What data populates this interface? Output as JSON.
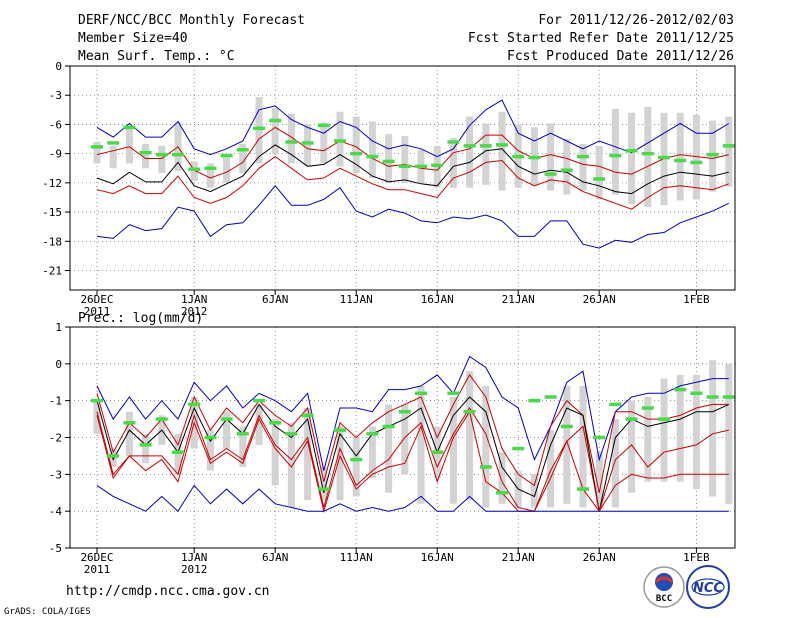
{
  "header": {
    "title": "DERF/NCC/BCC Monthly Forecast",
    "member_size": "Member Size=40",
    "period": "For 2011/12/26-2012/02/03",
    "start_date": "Fcst Started Refer Date 2011/12/25",
    "produced_date": "Fcst Produced Date 2011/12/26"
  },
  "footer": {
    "url": "http://cmdp.ncc.cma.gov.cn",
    "credit": "GrADS: COLA/IGES",
    "logo_bcc": "BCC",
    "logo_ncc": "NCC"
  },
  "colors": {
    "envelope": "#0000cc",
    "spread": "#cc0000",
    "mean": "#000000",
    "box": "#d3d3d3",
    "median": "#44dd44",
    "grid": "#777777"
  },
  "chart_data": [
    {
      "type": "line",
      "title": "Mean Surf. Temp.: °C",
      "ylim": [
        -23,
        0
      ],
      "yticks": [
        0,
        -3,
        -6,
        -9,
        -12,
        -15,
        -18,
        -21
      ],
      "ytick_labels": [
        "0",
        "-3",
        "-6",
        "-9",
        "-12",
        "-15",
        "-18",
        "-21"
      ],
      "x_tick_days": [
        0,
        6,
        11,
        16,
        21,
        26,
        31,
        37
      ],
      "x_tick_labels": [
        "26DEC",
        "1JAN",
        "6JAN",
        "11JAN",
        "16JAN",
        "21JAN",
        "26JAN",
        "1FEB"
      ],
      "x_year_labels": [
        "2011",
        "2012"
      ],
      "x_year_days": [
        0,
        6
      ],
      "days": [
        0,
        1,
        2,
        3,
        4,
        5,
        6,
        7,
        8,
        9,
        10,
        11,
        12,
        13,
        14,
        15,
        16,
        17,
        18,
        19,
        20,
        21,
        22,
        23,
        24,
        25,
        26,
        27,
        28,
        29,
        30,
        31,
        32,
        33,
        34,
        35,
        36,
        37,
        38,
        39
      ],
      "series": [
        {
          "name": "max",
          "color": "blue",
          "values": [
            -6.3,
            -7.3,
            -5.9,
            -7.3,
            -7.3,
            -5.7,
            -8.5,
            -9.1,
            -8.5,
            -7.7,
            -4.5,
            -4.1,
            -5.5,
            -6.3,
            -6.9,
            -5.7,
            -6.3,
            -7.7,
            -8.5,
            -8.1,
            -8.5,
            -9.3,
            -8.5,
            -6.1,
            -4.5,
            -3.5,
            -6.9,
            -7.7,
            -6.9,
            -7.7,
            -8.5,
            -7.7,
            -8.3,
            -8.9,
            -7.9,
            -6.9,
            -5.9,
            -6.9,
            -6.9,
            -5.9
          ]
        },
        {
          "name": "upper",
          "color": "red",
          "values": [
            -9.1,
            -8.7,
            -8.3,
            -9.5,
            -9.5,
            -8.3,
            -10.7,
            -11.5,
            -10.9,
            -9.9,
            -7.5,
            -6.3,
            -7.3,
            -8.5,
            -8.7,
            -7.7,
            -8.3,
            -9.5,
            -10.3,
            -10.1,
            -10.5,
            -10.7,
            -8.9,
            -8.5,
            -7.1,
            -7.1,
            -8.7,
            -9.5,
            -9.1,
            -9.5,
            -10.1,
            -10.3,
            -10.9,
            -11.1,
            -10.3,
            -9.5,
            -9.1,
            -9.3,
            -9.5,
            -9.1
          ]
        },
        {
          "name": "mean",
          "color": "black",
          "values": [
            -11.5,
            -12.1,
            -10.9,
            -11.9,
            -11.9,
            -9.9,
            -12.3,
            -12.9,
            -12.1,
            -11.3,
            -9.3,
            -8.1,
            -9.1,
            -10.3,
            -10.1,
            -9.1,
            -10.1,
            -11.3,
            -11.9,
            -11.7,
            -12.1,
            -12.3,
            -10.3,
            -9.9,
            -8.7,
            -8.5,
            -10.3,
            -11.1,
            -10.7,
            -10.9,
            -11.9,
            -12.3,
            -12.9,
            -13.1,
            -12.1,
            -11.3,
            -10.9,
            -11.1,
            -11.3,
            -10.9
          ]
        },
        {
          "name": "lower",
          "color": "red",
          "values": [
            -12.7,
            -13.1,
            -12.3,
            -13.1,
            -13.1,
            -11.3,
            -13.5,
            -14.1,
            -13.5,
            -12.3,
            -10.5,
            -9.3,
            -10.5,
            -11.7,
            -11.5,
            -10.5,
            -11.3,
            -12.1,
            -12.7,
            -12.7,
            -13.1,
            -13.5,
            -11.5,
            -10.9,
            -9.9,
            -9.7,
            -11.5,
            -12.3,
            -11.7,
            -11.9,
            -12.9,
            -13.5,
            -14.1,
            -14.7,
            -13.5,
            -12.5,
            -12.3,
            -12.5,
            -12.7,
            -12.1
          ]
        },
        {
          "name": "min",
          "color": "blue",
          "values": [
            -17.5,
            -17.7,
            -16.3,
            -16.9,
            -16.7,
            -14.5,
            -14.9,
            -17.5,
            -16.3,
            -16.1,
            -14.3,
            -12.3,
            -14.3,
            -14.3,
            -13.7,
            -12.5,
            -14.9,
            -15.5,
            -14.7,
            -15.1,
            -15.9,
            -16.1,
            -15.5,
            -15.7,
            -15.3,
            -15.9,
            -17.5,
            -17.5,
            -15.9,
            -15.9,
            -18.3,
            -18.7,
            -17.9,
            -18.1,
            -17.3,
            -17.1,
            -16.1,
            -15.5,
            -14.9,
            -14.1
          ]
        },
        {
          "name": "box_top",
          "color": "gray",
          "values": [
            -7.8,
            -8.2,
            -6.2,
            -8.0,
            -8.2,
            -5.8,
            -9.8,
            -10.0,
            -9.4,
            -8.0,
            -3.2,
            -4.3,
            -4.9,
            -6.0,
            -5.8,
            -4.7,
            -5.2,
            -5.7,
            -7.0,
            -7.2,
            -8.6,
            -8.2,
            -7.4,
            -5.2,
            -5.9,
            -4.7,
            -6.0,
            -6.3,
            -5.9,
            -7.5,
            -8.0,
            -8.2,
            -4.4,
            -4.8,
            -4.2,
            -4.8,
            -4.8,
            -5.0,
            -5.6,
            -5.2
          ]
        },
        {
          "name": "box_bottom",
          "color": "gray",
          "values": [
            -10.0,
            -10.5,
            -10.0,
            -10.5,
            -11.0,
            -10.8,
            -11.8,
            -12.5,
            -12.0,
            -11.0,
            -10.0,
            -9.0,
            -10.0,
            -10.2,
            -10.0,
            -10.3,
            -11.0,
            -11.5,
            -12.0,
            -12.0,
            -12.0,
            -12.5,
            -12.5,
            -12.5,
            -12.2,
            -12.8,
            -12.5,
            -12.3,
            -12.8,
            -13.2,
            -12.8,
            -13.7,
            -13.2,
            -14.2,
            -14.5,
            -14.3,
            -13.8,
            -13.7,
            -12.9,
            -12.4
          ]
        },
        {
          "name": "median",
          "color": "green",
          "values": [
            -8.3,
            -7.9,
            -6.3,
            -8.9,
            -9.1,
            -9.1,
            -10.6,
            -10.5,
            -9.2,
            -8.6,
            -6.4,
            -5.6,
            -7.8,
            -7.9,
            -6.1,
            -7.7,
            -9.0,
            -9.3,
            -9.8,
            -10.3,
            -10.3,
            -10.2,
            -7.8,
            -8.2,
            -8.2,
            -8.1,
            -9.3,
            -9.4,
            -11.1,
            -10.7,
            -9.3,
            -11.6,
            -9.2,
            -8.7,
            -9.0,
            -9.4,
            -9.7,
            -9.9,
            -9.1,
            -8.2
          ]
        }
      ]
    },
    {
      "type": "line",
      "title": "Prec.: log(mm/d)",
      "ylim": [
        -5,
        1
      ],
      "yticks": [
        1,
        0,
        -1,
        -2,
        -3,
        -4,
        -5
      ],
      "ytick_labels": [
        "1",
        "0",
        "-1",
        "-2",
        "-3",
        "-4",
        "-5"
      ],
      "x_tick_days": [
        0,
        6,
        11,
        16,
        21,
        26,
        31,
        37
      ],
      "x_tick_labels": [
        "26DEC",
        "1JAN",
        "6JAN",
        "11JAN",
        "16JAN",
        "21JAN",
        "26JAN",
        "1FEB"
      ],
      "x_year_labels": [
        "2011",
        "2012"
      ],
      "x_year_days": [
        0,
        6
      ],
      "days": [
        0,
        1,
        2,
        3,
        4,
        5,
        6,
        7,
        8,
        9,
        10,
        11,
        12,
        13,
        14,
        15,
        16,
        17,
        18,
        19,
        20,
        21,
        22,
        23,
        24,
        25,
        26,
        27,
        28,
        29,
        30,
        31,
        32,
        33,
        34,
        35,
        36,
        37,
        38,
        39
      ],
      "series": [
        {
          "name": "max",
          "color": "blue",
          "values": [
            -0.6,
            -1.5,
            -0.9,
            -1.5,
            -1.0,
            -1.5,
            -0.5,
            -1.0,
            -0.6,
            -1.2,
            -0.8,
            -1.0,
            -1.3,
            -0.8,
            -2.9,
            -1.2,
            -1.2,
            -1.3,
            -0.7,
            -0.7,
            -0.6,
            -0.3,
            -0.8,
            0.2,
            -0.1,
            -0.9,
            -1.2,
            -2.6,
            -1.7,
            -0.5,
            -0.2,
            -2.6,
            -1.3,
            -0.9,
            -0.8,
            -0.8,
            -0.6,
            -0.5,
            -0.4,
            -0.4
          ]
        },
        {
          "name": "upper",
          "color": "red",
          "values": [
            -0.8,
            -2.4,
            -1.6,
            -2.0,
            -1.5,
            -2.2,
            -0.9,
            -1.8,
            -1.2,
            -1.6,
            -1.0,
            -1.4,
            -1.7,
            -1.2,
            -3.2,
            -1.6,
            -2.0,
            -1.6,
            -1.3,
            -1.1,
            -0.9,
            -2.0,
            -1.1,
            -0.3,
            -0.9,
            -2.3,
            -3.0,
            -3.3,
            -1.7,
            -1.0,
            -1.4,
            -3.5,
            -1.3,
            -1.3,
            -1.5,
            -1.5,
            -1.4,
            -1.2,
            -1.1,
            -1.1
          ]
        },
        {
          "name": "mean",
          "color": "black",
          "values": [
            -1.0,
            -2.6,
            -1.8,
            -2.2,
            -1.8,
            -2.4,
            -1.2,
            -2.1,
            -1.5,
            -1.9,
            -1.1,
            -1.7,
            -2.0,
            -1.5,
            -3.5,
            -1.9,
            -2.5,
            -1.9,
            -1.7,
            -1.5,
            -1.2,
            -2.4,
            -1.4,
            -0.9,
            -1.3,
            -2.8,
            -3.4,
            -3.6,
            -2.2,
            -1.2,
            -1.4,
            -4.0,
            -2.0,
            -1.5,
            -1.7,
            -1.6,
            -1.5,
            -1.3,
            -1.3,
            -1.1
          ]
        },
        {
          "name": "lower",
          "color": "red",
          "values": [
            -1.3,
            -3.0,
            -2.5,
            -2.5,
            -2.5,
            -3.0,
            -1.4,
            -2.6,
            -2.3,
            -2.6,
            -1.4,
            -2.2,
            -2.6,
            -2.0,
            -3.9,
            -2.3,
            -3.3,
            -2.9,
            -2.6,
            -2.0,
            -1.6,
            -2.8,
            -1.9,
            -1.2,
            -1.9,
            -3.2,
            -3.9,
            -4.0,
            -2.9,
            -2.1,
            -1.7,
            -4.0,
            -2.6,
            -2.2,
            -2.8,
            -2.4,
            -2.3,
            -2.2,
            -1.9,
            -1.8
          ]
        },
        {
          "name": "lowest",
          "color": "red",
          "values": [
            -1.4,
            -3.1,
            -2.5,
            -2.9,
            -2.6,
            -3.2,
            -1.6,
            -2.7,
            -2.4,
            -2.7,
            -1.5,
            -2.3,
            -2.8,
            -2.1,
            -4.0,
            -2.5,
            -3.4,
            -3.0,
            -2.8,
            -2.7,
            -1.7,
            -3.2,
            -2.0,
            -1.3,
            -3.2,
            -3.5,
            -4.0,
            -4.0,
            -3.1,
            -2.1,
            -3.4,
            -4.0,
            -3.3,
            -3.0,
            -3.1,
            -3.1,
            -3.0,
            -3.0,
            -3.0,
            -3.0
          ]
        },
        {
          "name": "min",
          "color": "blue",
          "values": [
            -3.3,
            -3.6,
            -3.8,
            -4.0,
            -3.6,
            -4.0,
            -3.3,
            -3.8,
            -3.4,
            -3.8,
            -3.4,
            -3.8,
            -3.9,
            -4.0,
            -4.0,
            -3.8,
            -4.0,
            -3.9,
            -4.0,
            -3.9,
            -3.6,
            -4.0,
            -4.0,
            -3.6,
            -4.0,
            -4.0,
            -4.0,
            -4.0,
            -4.0,
            -4.0,
            -4.0,
            -4.0,
            -4.0,
            -4.0,
            -4.0,
            -4.0,
            -4.0,
            -4.0,
            -4.0,
            -4.0
          ]
        },
        {
          "name": "box_top",
          "color": "gray",
          "values": [
            -1.0,
            -2.3,
            -1.3,
            -1.9,
            -1.4,
            -1.9,
            -0.9,
            -1.8,
            -1.3,
            -1.7,
            -1.1,
            -1.5,
            -1.6,
            -1.2,
            -2.8,
            -1.7,
            -2.0,
            -1.7,
            -1.1,
            -1.1,
            -0.6,
            -1.7,
            -0.9,
            -0.2,
            -0.6,
            -2.4,
            -2.9,
            -3.0,
            -1.8,
            -0.6,
            -0.6,
            -2.4,
            -1.5,
            -1.0,
            -0.9,
            -0.4,
            -0.3,
            -0.3,
            0.1,
            0.0
          ]
        },
        {
          "name": "box_bottom",
          "color": "gray",
          "values": [
            -1.9,
            -2.8,
            -2.5,
            -2.7,
            -2.2,
            -3.0,
            -2.3,
            -2.9,
            -2.3,
            -2.8,
            -2.2,
            -3.3,
            -3.9,
            -3.7,
            -3.7,
            -3.7,
            -3.6,
            -3.1,
            -3.5,
            -3.0,
            -3.8,
            -3.1,
            -3.8,
            -3.7,
            -3.9,
            -3.8,
            -3.9,
            -3.9,
            -3.9,
            -3.8,
            -3.9,
            -3.9,
            -3.9,
            -3.5,
            -3.2,
            -3.2,
            -3.2,
            -3.4,
            -3.6,
            -3.8
          ]
        },
        {
          "name": "median",
          "color": "green",
          "values": [
            -1.0,
            -2.5,
            -1.6,
            -2.2,
            -1.5,
            -2.4,
            -1.1,
            -2.0,
            -1.5,
            -1.9,
            -1.0,
            -1.6,
            -1.9,
            -1.4,
            -3.4,
            -1.8,
            -2.6,
            -1.9,
            -1.7,
            -1.3,
            -0.8,
            -2.4,
            -0.8,
            -1.3,
            -2.8,
            -3.5,
            -2.3,
            -1.0,
            -0.9,
            -1.7,
            -3.4,
            -2.0,
            -1.1,
            -1.5,
            -1.2,
            -1.5,
            -0.7,
            -0.8,
            -0.9,
            -0.9
          ]
        }
      ]
    }
  ]
}
